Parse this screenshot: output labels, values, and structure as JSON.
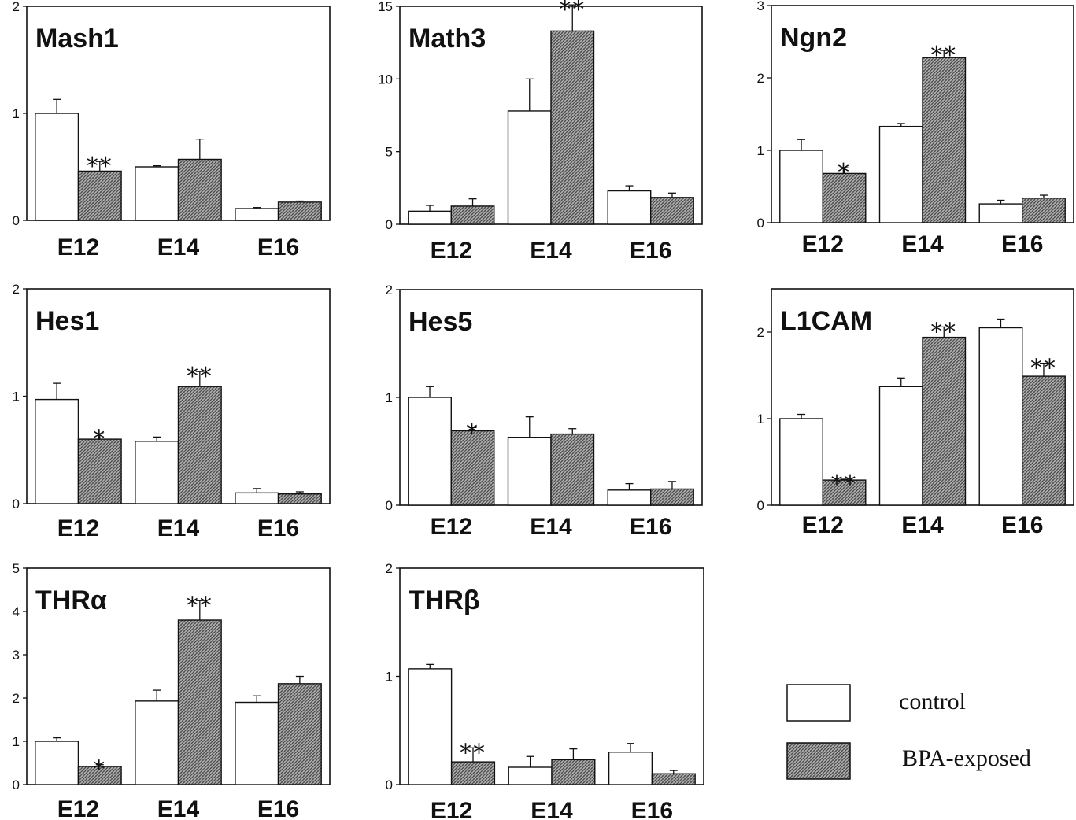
{
  "legend": {
    "items": [
      {
        "label": "control",
        "pattern": "white"
      },
      {
        "label": "BPA-exposed",
        "pattern": "hatched"
      }
    ]
  },
  "colors": {
    "control_fill": "#ffffff",
    "bpa_fill": "#9a9a9a",
    "stroke": "#111111"
  },
  "chart_data": [
    {
      "type": "bar",
      "title": "Mash1",
      "categories": [
        "E12",
        "E14",
        "E16"
      ],
      "ylim": [
        0,
        2
      ],
      "yticks": [
        "0",
        "1",
        "2"
      ],
      "series": [
        {
          "name": "control",
          "values": [
            1.0,
            0.5,
            0.11
          ],
          "errors": [
            0.13,
            0.01,
            0.01
          ]
        },
        {
          "name": "BPA-exposed",
          "values": [
            0.46,
            0.57,
            0.17
          ],
          "errors": [
            0.09,
            0.19,
            0.01
          ]
        }
      ],
      "annotations": [
        {
          "category": "E12",
          "series": "BPA-exposed",
          "text": "**"
        }
      ]
    },
    {
      "type": "bar",
      "title": "Math3",
      "categories": [
        "E12",
        "E14",
        "E16"
      ],
      "ylim": [
        0,
        15
      ],
      "yticks": [
        "0",
        "5",
        "10",
        "15"
      ],
      "series": [
        {
          "name": "control",
          "values": [
            0.9,
            7.8,
            2.3
          ],
          "errors": [
            0.4,
            2.2,
            0.35
          ]
        },
        {
          "name": "BPA-exposed",
          "values": [
            1.25,
            13.3,
            1.85
          ],
          "errors": [
            0.5,
            1.8,
            0.3
          ]
        }
      ],
      "annotations": [
        {
          "category": "E14",
          "series": "BPA-exposed",
          "text": "**"
        }
      ]
    },
    {
      "type": "bar",
      "title": "Ngn2",
      "categories": [
        "E12",
        "E14",
        "E16"
      ],
      "ylim": [
        0,
        3
      ],
      "yticks": [
        "0",
        "1",
        "2",
        "3"
      ],
      "series": [
        {
          "name": "control",
          "values": [
            1.0,
            1.33,
            0.26
          ],
          "errors": [
            0.15,
            0.04,
            0.05
          ]
        },
        {
          "name": "BPA-exposed",
          "values": [
            0.68,
            2.28,
            0.34
          ],
          "errors": [
            0.08,
            0.1,
            0.04
          ]
        }
      ],
      "annotations": [
        {
          "category": "E12",
          "series": "BPA-exposed",
          "text": "*"
        },
        {
          "category": "E14",
          "series": "BPA-exposed",
          "text": "**"
        }
      ]
    },
    {
      "type": "bar",
      "title": "Hes1",
      "categories": [
        "E12",
        "E14",
        "E16"
      ],
      "ylim": [
        0,
        2
      ],
      "yticks": [
        "0",
        "1",
        "2"
      ],
      "series": [
        {
          "name": "control",
          "values": [
            0.97,
            0.58,
            0.1
          ],
          "errors": [
            0.15,
            0.04,
            0.04
          ]
        },
        {
          "name": "BPA-exposed",
          "values": [
            0.6,
            1.09,
            0.09
          ],
          "errors": [
            0.05,
            0.14,
            0.02
          ]
        }
      ],
      "annotations": [
        {
          "category": "E12",
          "series": "BPA-exposed",
          "text": "*"
        },
        {
          "category": "E14",
          "series": "BPA-exposed",
          "text": "**"
        }
      ]
    },
    {
      "type": "bar",
      "title": "Hes5",
      "categories": [
        "E12",
        "E14",
        "E16"
      ],
      "ylim": [
        0,
        2
      ],
      "yticks": [
        "0",
        "1",
        "2"
      ],
      "series": [
        {
          "name": "control",
          "values": [
            1.0,
            0.63,
            0.14
          ],
          "errors": [
            0.1,
            0.19,
            0.06
          ]
        },
        {
          "name": "BPA-exposed",
          "values": [
            0.69,
            0.66,
            0.15
          ],
          "errors": [
            0.03,
            0.05,
            0.07
          ]
        }
      ],
      "annotations": [
        {
          "category": "E12",
          "series": "BPA-exposed",
          "text": "*"
        }
      ]
    },
    {
      "type": "bar",
      "title": "L1CAM",
      "categories": [
        "E12",
        "E14",
        "E16"
      ],
      "ylim": [
        0,
        2.5
      ],
      "yticks": [
        "0",
        "1",
        "2"
      ],
      "series": [
        {
          "name": "control",
          "values": [
            1.0,
            1.37,
            2.05
          ],
          "errors": [
            0.05,
            0.1,
            0.1
          ]
        },
        {
          "name": "BPA-exposed",
          "values": [
            0.29,
            1.94,
            1.49
          ],
          "errors": [
            0.01,
            0.12,
            0.15
          ]
        }
      ],
      "annotations": [
        {
          "category": "E12",
          "series": "BPA-exposed",
          "text": "**"
        },
        {
          "category": "E14",
          "series": "BPA-exposed",
          "text": "**"
        },
        {
          "category": "E16",
          "series": "BPA-exposed",
          "text": "**"
        }
      ]
    },
    {
      "type": "bar",
      "title": "THRα",
      "categories": [
        "E12",
        "E14",
        "E16"
      ],
      "ylim": [
        0,
        5
      ],
      "yticks": [
        "0",
        "1",
        "2",
        "3",
        "4",
        "5"
      ],
      "series": [
        {
          "name": "control",
          "values": [
            1.0,
            1.93,
            1.9
          ],
          "errors": [
            0.08,
            0.25,
            0.15
          ]
        },
        {
          "name": "BPA-exposed",
          "values": [
            0.42,
            3.8,
            2.33
          ],
          "errors": [
            0.04,
            0.45,
            0.17
          ]
        }
      ],
      "annotations": [
        {
          "category": "E12",
          "series": "BPA-exposed",
          "text": "*"
        },
        {
          "category": "E14",
          "series": "BPA-exposed",
          "text": "**"
        }
      ]
    },
    {
      "type": "bar",
      "title": "THRβ",
      "categories": [
        "E12",
        "E14",
        "E16"
      ],
      "ylim": [
        0,
        2
      ],
      "yticks": [
        "0",
        "1",
        "2"
      ],
      "series": [
        {
          "name": "control",
          "values": [
            1.07,
            0.16,
            0.3
          ],
          "errors": [
            0.04,
            0.1,
            0.08
          ]
        },
        {
          "name": "BPA-exposed",
          "values": [
            0.21,
            0.23,
            0.1
          ],
          "errors": [
            0.13,
            0.1,
            0.03
          ]
        }
      ],
      "annotations": [
        {
          "category": "E12",
          "series": "BPA-exposed",
          "text": "**"
        }
      ]
    }
  ]
}
